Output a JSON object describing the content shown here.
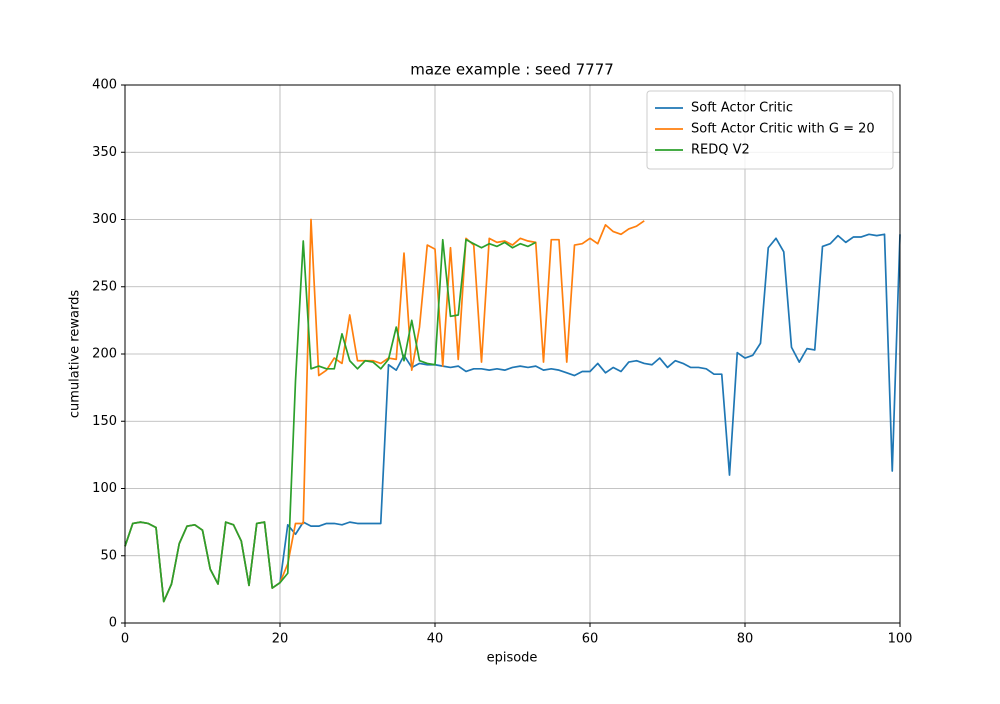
{
  "chart_data": {
    "type": "line",
    "title": "maze example : seed 7777",
    "xlabel": "episode",
    "ylabel": "cumulative rewards",
    "x": [
      0,
      1,
      2,
      3,
      4,
      5,
      6,
      7,
      8,
      9,
      10,
      11,
      12,
      13,
      14,
      15,
      16,
      17,
      18,
      19,
      20,
      21,
      22,
      23,
      24,
      25,
      26,
      27,
      28,
      29,
      30,
      31,
      32,
      33,
      34,
      35,
      36,
      37,
      38,
      39,
      40,
      41,
      42,
      43,
      44,
      45,
      46,
      47,
      48,
      49,
      50,
      51,
      52,
      53,
      54,
      55,
      56,
      57,
      58,
      59,
      60,
      61,
      62,
      63,
      64,
      65,
      66,
      67,
      68,
      69,
      70,
      71,
      72,
      73,
      74,
      75,
      76,
      77,
      78,
      79,
      80,
      81,
      82,
      83,
      84,
      85,
      86,
      87,
      88,
      89,
      90,
      91,
      92,
      93,
      94,
      95,
      96,
      97,
      98,
      99,
      100
    ],
    "series": [
      {
        "name": "Soft Actor Critic",
        "color": "#1f77b4",
        "values": [
          57,
          74,
          75,
          74,
          71,
          16,
          29,
          59,
          72,
          73,
          69,
          40,
          29,
          75,
          73,
          61,
          28,
          74,
          75,
          26,
          30,
          73,
          66,
          75,
          72,
          72,
          74,
          74,
          73,
          75,
          74,
          74,
          74,
          74,
          192,
          188,
          199,
          190,
          193,
          192,
          192,
          191,
          190,
          191,
          187,
          189,
          189,
          188,
          189,
          188,
          190,
          191,
          190,
          191,
          188,
          189,
          188,
          186,
          184,
          187,
          187,
          193,
          186,
          190,
          187,
          194,
          195,
          193,
          192,
          197,
          190,
          195,
          193,
          190,
          190,
          189,
          185,
          185,
          110,
          201,
          197,
          199,
          208,
          279,
          286,
          276,
          205,
          194,
          204,
          203,
          280,
          282,
          288,
          283,
          287,
          287,
          289,
          288,
          289,
          113,
          289
        ]
      },
      {
        "name": "Soft Actor Critic with G = 20",
        "color": "#ff7f0e",
        "values": [
          57,
          74,
          75,
          74,
          71,
          16,
          29,
          59,
          72,
          73,
          69,
          40,
          29,
          75,
          73,
          61,
          28,
          74,
          75,
          26,
          30,
          44,
          74,
          74,
          300,
          184,
          188,
          197,
          193,
          229,
          195,
          195,
          195,
          193,
          197,
          196,
          275,
          188,
          220,
          281,
          278,
          191,
          279,
          196,
          286,
          281,
          194,
          286,
          283,
          284,
          281,
          286,
          284,
          283,
          194,
          285,
          285,
          194,
          281,
          282,
          286,
          282,
          296,
          291,
          289,
          293,
          295,
          299,
          null,
          null,
          null,
          null,
          null,
          null,
          null,
          null,
          null,
          null,
          null,
          null,
          null,
          null,
          null,
          null,
          null,
          null,
          null,
          null,
          null,
          null,
          null,
          null,
          null,
          null,
          null,
          null,
          null,
          null,
          null,
          null,
          null
        ]
      },
      {
        "name": "REDQ V2",
        "color": "#2ca02c",
        "values": [
          57,
          74,
          75,
          74,
          71,
          16,
          29,
          59,
          72,
          73,
          69,
          40,
          29,
          75,
          73,
          61,
          28,
          74,
          75,
          26,
          30,
          37,
          180,
          284,
          189,
          191,
          189,
          189,
          215,
          195,
          189,
          195,
          194,
          189,
          196,
          220,
          195,
          225,
          195,
          193,
          192,
          285,
          228,
          229,
          285,
          282,
          279,
          282,
          280,
          283,
          279,
          282,
          280,
          283,
          null,
          null,
          null,
          null,
          null,
          null,
          null,
          null,
          null,
          null,
          null,
          null,
          null,
          null,
          null,
          null,
          null,
          null,
          null,
          null,
          null,
          null,
          null,
          null,
          null,
          null,
          null,
          null,
          null,
          null,
          null,
          null,
          null,
          null,
          null,
          null,
          null,
          null,
          null,
          null,
          null,
          null,
          null,
          null,
          null,
          null,
          null
        ]
      }
    ],
    "xlim": [
      0,
      100
    ],
    "xticks": [
      0,
      20,
      40,
      60,
      80,
      100
    ],
    "ylim": [
      0,
      400
    ],
    "yticks": [
      0,
      50,
      100,
      150,
      200,
      250,
      300,
      350,
      400
    ],
    "grid": true,
    "legend": "upper-right"
  }
}
